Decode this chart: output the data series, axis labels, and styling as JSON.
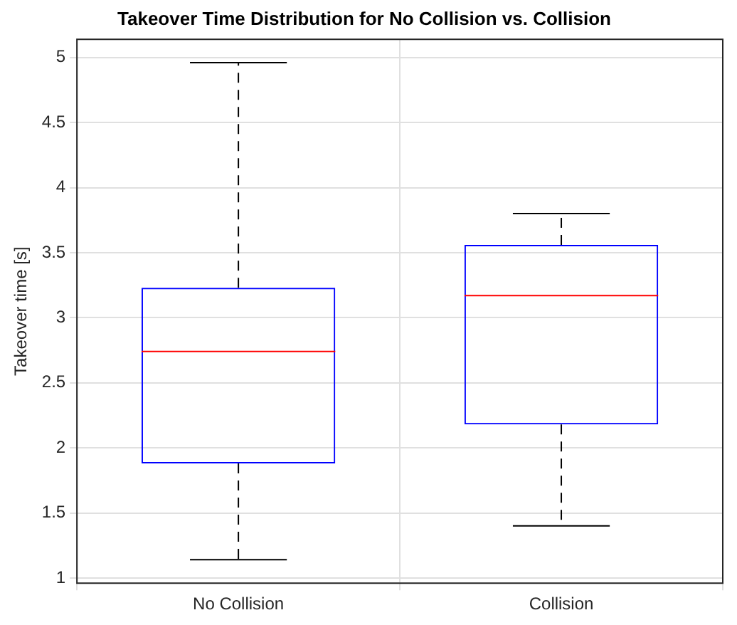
{
  "chart_data": {
    "type": "box",
    "title": "Takeover Time Distribution for No Collision vs. Collision",
    "ylabel": "Takeover time [s]",
    "categories": [
      "No Collision",
      "Collision"
    ],
    "boxes": [
      {
        "low": 1.14,
        "q1": 1.88,
        "median": 2.74,
        "q3": 3.23,
        "high": 4.96
      },
      {
        "low": 1.4,
        "q1": 2.18,
        "median": 3.17,
        "q3": 3.56,
        "high": 3.8
      }
    ],
    "color": "#0000ff",
    "ylim": [
      0.96,
      5.14
    ],
    "yticks": [
      1,
      1.5,
      2,
      2.5,
      3,
      3.5,
      4,
      4.5,
      5
    ],
    "grid": true
  }
}
